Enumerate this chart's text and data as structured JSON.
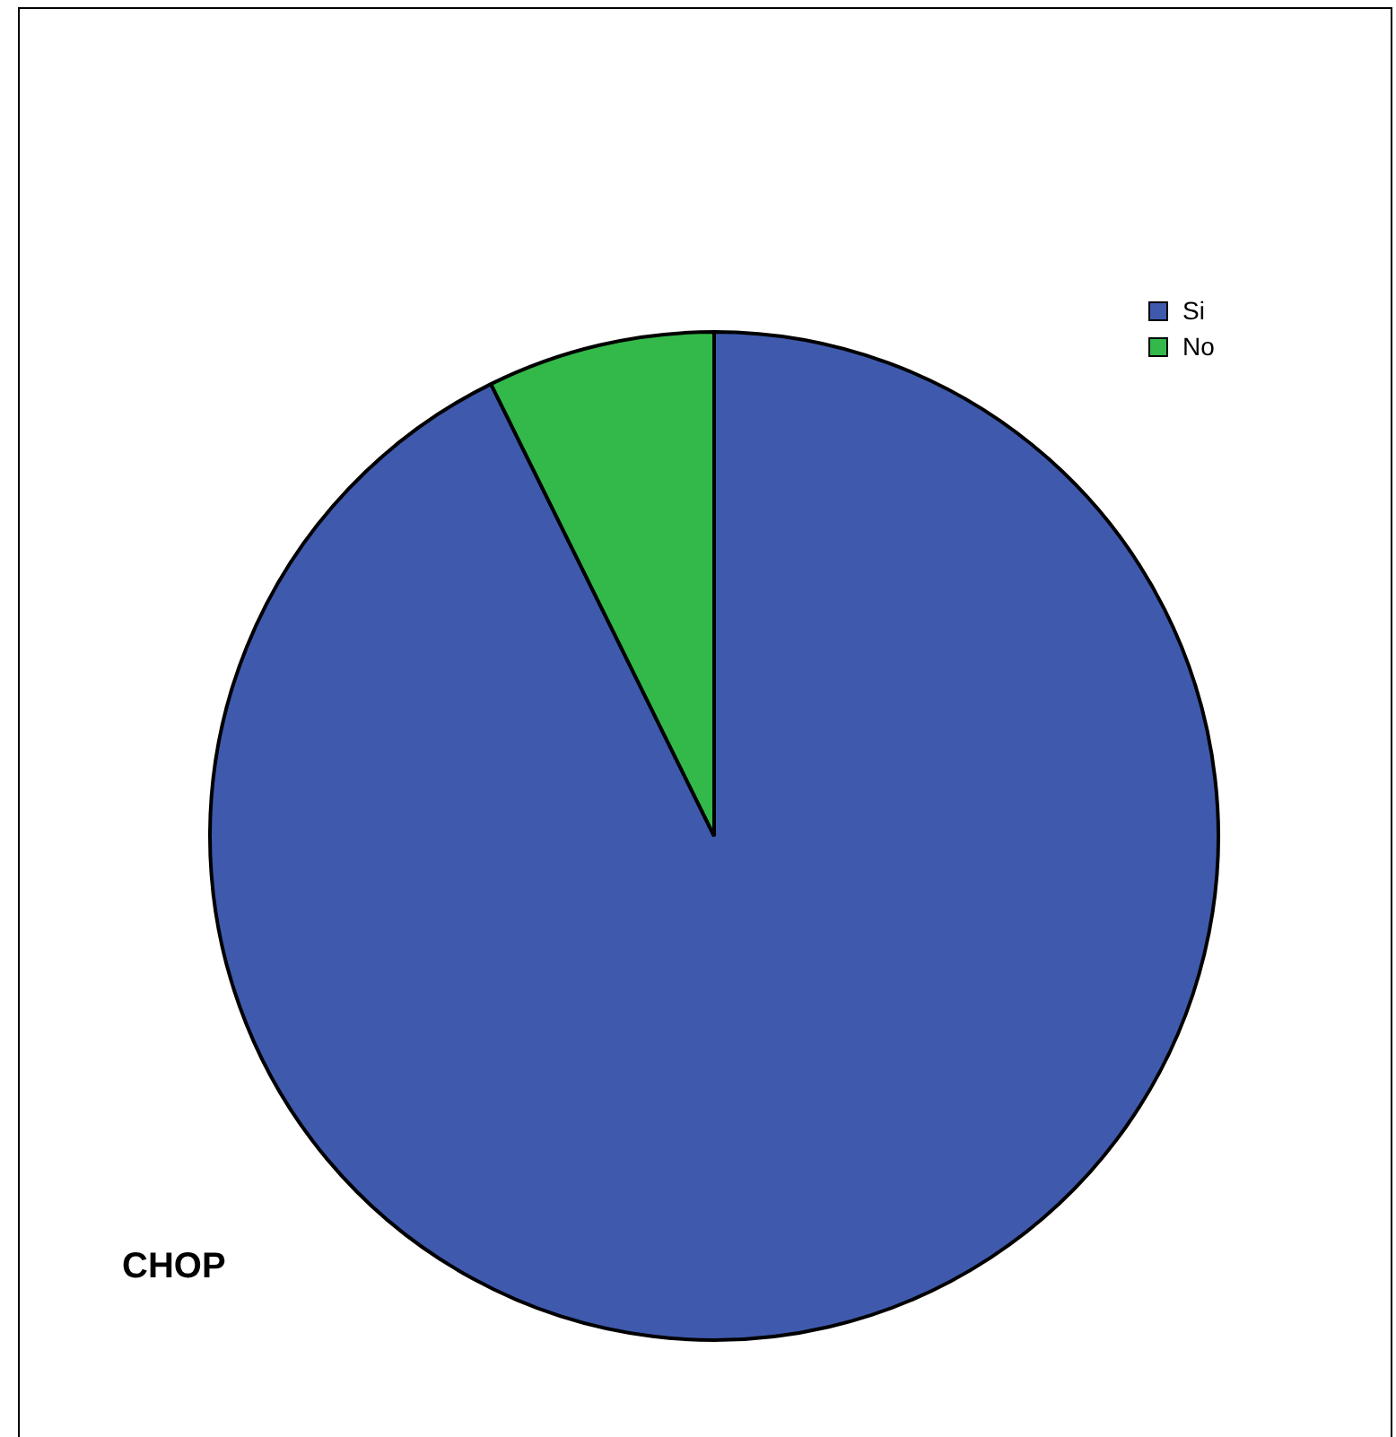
{
  "chart_data": {
    "type": "pie",
    "title": "CHOP",
    "categories": [
      "Si",
      "No"
    ],
    "values": [
      92.7,
      7.3
    ],
    "colors": [
      "#3f5aad",
      "#33b94a"
    ],
    "legend": "top right"
  }
}
